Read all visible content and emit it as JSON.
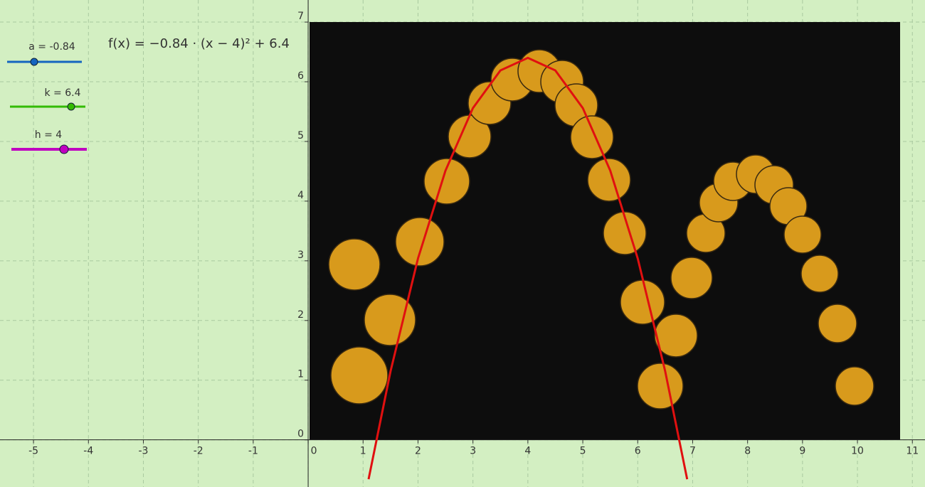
{
  "chart_data": {
    "type": "line",
    "formula": "f(x) = −0.84 · (x − 4)² + 6.4",
    "sliders": [
      {
        "label": "a = -0.84",
        "color": "#1565c0"
      },
      {
        "label": "k = 6.4",
        "color": "#33bb00"
      },
      {
        "label": "h = 4",
        "color": "#c000c0"
      }
    ],
    "x": [
      1.1,
      1.5,
      2,
      2.5,
      3,
      3.5,
      4,
      4.5,
      5,
      5.5,
      6,
      6.5,
      6.9
    ],
    "series": [
      {
        "color": "#e01010",
        "values": [
          -0.66,
          1.15,
          3.04,
          4.51,
          5.56,
          6.19,
          6.4,
          6.19,
          5.56,
          4.51,
          3.04,
          1.15,
          -0.66
        ]
      }
    ],
    "xlim": [
      -5.61,
      11.23
    ],
    "ylim": [
      -0.79,
      7.37
    ],
    "xticks": [
      -5,
      -4,
      -3,
      -2,
      -1,
      0,
      1,
      2,
      3,
      4,
      5,
      6,
      7,
      8,
      9,
      10,
      11
    ],
    "yticks": [
      0,
      1,
      2,
      3,
      4,
      5,
      6,
      7
    ],
    "grid": true
  }
}
